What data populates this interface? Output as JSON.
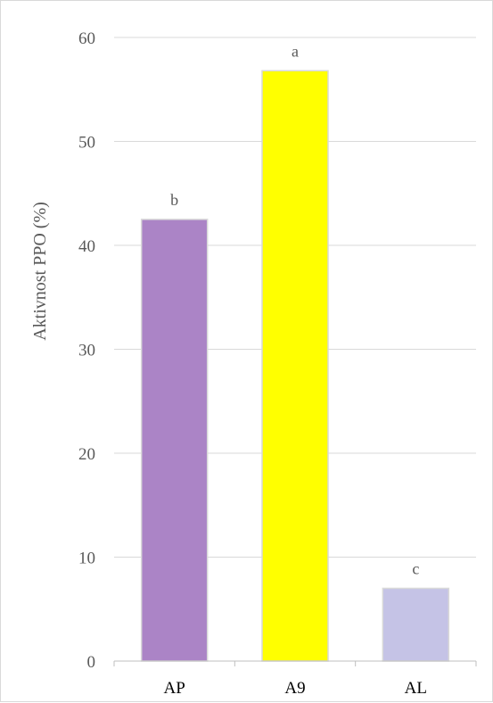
{
  "chart_data": {
    "type": "bar",
    "title": "",
    "xlabel": "",
    "ylabel": "Aktivnost PPO (%)",
    "ylim": [
      0,
      60
    ],
    "yticks": [
      0,
      10,
      20,
      30,
      40,
      50,
      60
    ],
    "grid": true,
    "categories": [
      "AP",
      "A9",
      "AL"
    ],
    "values": [
      42.5,
      56.8,
      7.0
    ],
    "significance_labels": [
      "b",
      "a",
      "c"
    ],
    "colors": [
      "#ab84c6",
      "#ffff00",
      "#c5c3e6"
    ]
  }
}
